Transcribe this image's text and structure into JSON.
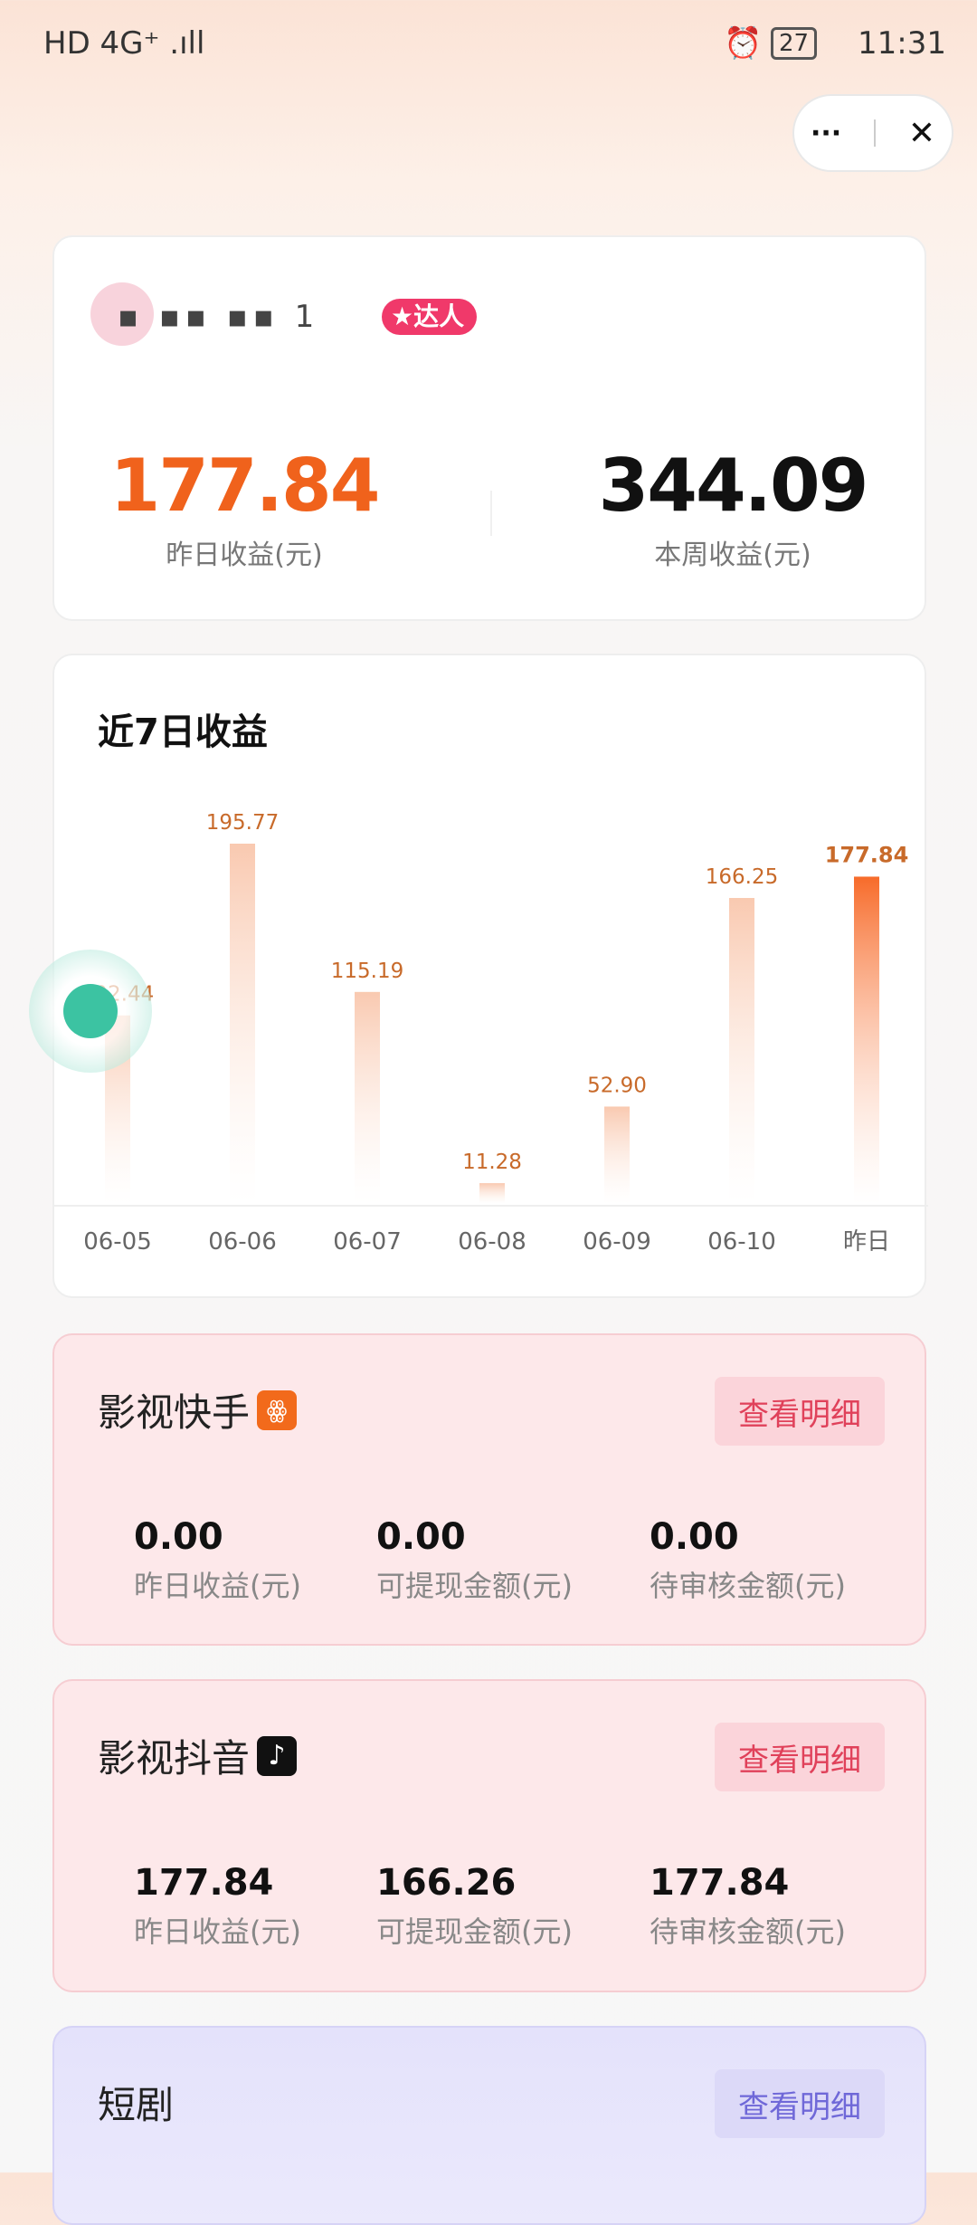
{
  "status_bar": {
    "left": "HD 4G⁺ .ıll",
    "time": "11:31",
    "battery": "27"
  },
  "capsule": {
    "more": "···",
    "close": "✕"
  },
  "profile": {
    "name": "▪ ▪▪ ▪▪ 1",
    "badge": "达人"
  },
  "summary": {
    "yesterday_value": "177.84",
    "yesterday_label": "昨日收益(元)",
    "week_value": "344.09",
    "week_label": "本周收益(元)"
  },
  "chart_section": {
    "title": "近7日收益"
  },
  "chart_data": {
    "type": "bar",
    "title": "近7日收益",
    "categories": [
      "06-05",
      "06-06",
      "06-07",
      "06-08",
      "06-09",
      "06-10",
      "昨日"
    ],
    "values": [
      102.44,
      195.77,
      115.19,
      11.28,
      52.9,
      166.25,
      177.84
    ],
    "labels": [
      "102.44",
      "195.77",
      "115.19",
      "11.28",
      "52.90",
      "166.25",
      "177.84"
    ],
    "highlight_index": 6,
    "colors": {
      "bar": "#f9c9b0",
      "highlight": "#f76b2a",
      "label": "#c86a2a"
    }
  },
  "platforms": [
    {
      "title": "影视快手",
      "icon": "kuaishou-icon",
      "button": "查看明细",
      "stats": [
        {
          "value": "0.00",
          "label": "昨日收益(元)"
        },
        {
          "value": "0.00",
          "label": "可提现金额(元)"
        },
        {
          "value": "0.00",
          "label": "待审核金额(元)"
        }
      ]
    },
    {
      "title": "影视抖音",
      "icon": "douyin-icon",
      "button": "查看明细",
      "stats": [
        {
          "value": "177.84",
          "label": "昨日收益(元)"
        },
        {
          "value": "166.26",
          "label": "可提现金额(元)"
        },
        {
          "value": "177.84",
          "label": "待审核金额(元)"
        }
      ]
    },
    {
      "title": "短剧",
      "button": "查看明细"
    }
  ],
  "colors": {
    "accent": "#f0621c",
    "badge": "#f0396a",
    "pink_card": "#fde8ea",
    "purple_card": "#e4e2fb",
    "pink_button_text": "#e0415a",
    "purple_button_text": "#6f68d8"
  }
}
